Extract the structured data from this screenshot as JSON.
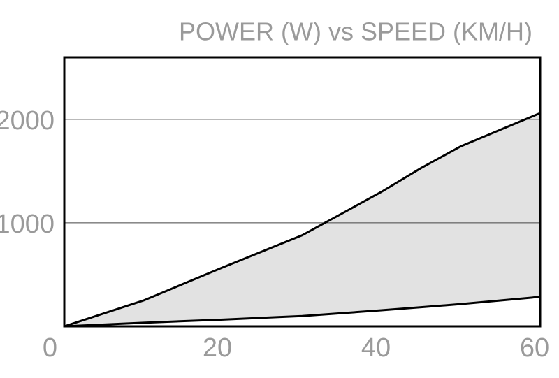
{
  "chart_data": {
    "type": "area",
    "title": "POWER (W) vs SPEED (KM/H)",
    "x": [
      0,
      10,
      20,
      30,
      40,
      45,
      50,
      55,
      60
    ],
    "series": [
      {
        "color": "#000000",
        "values": [
          0,
          250,
          570,
          880,
          1300,
          1530,
          1740,
          1900,
          2060
        ]
      },
      {
        "color": "#000000",
        "values": [
          0,
          35,
          65,
          100,
          155,
          185,
          215,
          250,
          285
        ]
      }
    ],
    "fill": "#e2e2e2",
    "xlim": [
      0,
      60
    ],
    "xticks": [
      0,
      20,
      40,
      60
    ],
    "ylim": [
      0,
      2600
    ],
    "yticks": [
      1000,
      2000
    ],
    "grid": true
  }
}
